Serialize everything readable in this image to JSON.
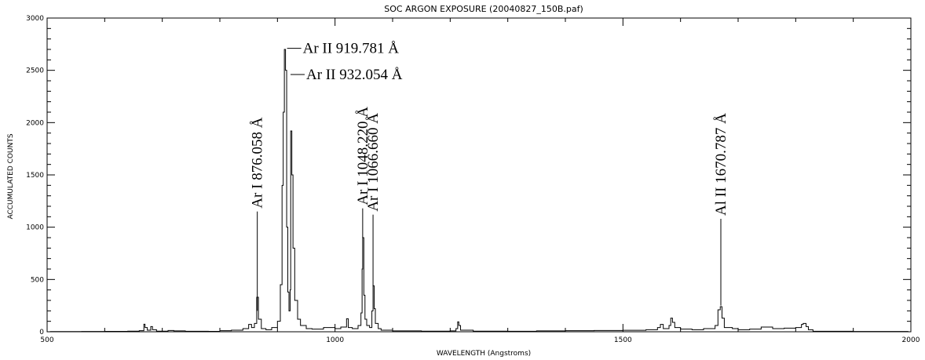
{
  "chart_data": {
    "type": "line",
    "title": "SOC ARGON EXPOSURE (20040827_150B.paf)",
    "xlabel": "WAVELENGTH (Angstroms)",
    "ylabel": "ACCUMULATED COUNTS",
    "xlim": [
      500,
      2000
    ],
    "ylim": [
      0,
      3000
    ],
    "xticks": [
      500,
      1000,
      1500,
      2000
    ],
    "yticks": [
      0,
      500,
      1000,
      1500,
      2000,
      2500,
      3000
    ],
    "grid": false,
    "series": [
      {
        "style": "step",
        "points": [
          [
            505,
            2
          ],
          [
            560,
            3
          ],
          [
            600,
            4
          ],
          [
            640,
            6
          ],
          [
            660,
            10
          ],
          [
            668,
            72
          ],
          [
            670,
            40
          ],
          [
            674,
            15
          ],
          [
            680,
            50
          ],
          [
            683,
            20
          ],
          [
            690,
            6
          ],
          [
            710,
            12
          ],
          [
            720,
            8
          ],
          [
            740,
            5
          ],
          [
            780,
            4
          ],
          [
            800,
            10
          ],
          [
            820,
            15
          ],
          [
            840,
            30
          ],
          [
            850,
            70
          ],
          [
            855,
            40
          ],
          [
            860,
            80
          ],
          [
            864,
            330
          ],
          [
            867,
            120
          ],
          [
            872,
            30
          ],
          [
            880,
            20
          ],
          [
            890,
            40
          ],
          [
            900,
            100
          ],
          [
            905,
            450
          ],
          [
            908,
            1400
          ],
          [
            910,
            2100
          ],
          [
            912,
            2700
          ],
          [
            914,
            2500
          ],
          [
            916,
            1000
          ],
          [
            918,
            380
          ],
          [
            920,
            200
          ],
          [
            922,
            400
          ],
          [
            923,
            1920
          ],
          [
            925,
            1500
          ],
          [
            927,
            800
          ],
          [
            930,
            300
          ],
          [
            935,
            120
          ],
          [
            940,
            60
          ],
          [
            950,
            30
          ],
          [
            960,
            25
          ],
          [
            980,
            40
          ],
          [
            1000,
            30
          ],
          [
            1010,
            45
          ],
          [
            1020,
            125
          ],
          [
            1023,
            40
          ],
          [
            1030,
            30
          ],
          [
            1040,
            60
          ],
          [
            1045,
            180
          ],
          [
            1047,
            600
          ],
          [
            1048,
            900
          ],
          [
            1050,
            350
          ],
          [
            1052,
            120
          ],
          [
            1055,
            60
          ],
          [
            1060,
            40
          ],
          [
            1064,
            200
          ],
          [
            1066,
            440
          ],
          [
            1068,
            220
          ],
          [
            1070,
            80
          ],
          [
            1075,
            30
          ],
          [
            1080,
            15
          ],
          [
            1100,
            8
          ],
          [
            1150,
            6
          ],
          [
            1200,
            8
          ],
          [
            1210,
            30
          ],
          [
            1213,
            95
          ],
          [
            1215,
            60
          ],
          [
            1218,
            15
          ],
          [
            1240,
            6
          ],
          [
            1300,
            5
          ],
          [
            1350,
            8
          ],
          [
            1400,
            10
          ],
          [
            1450,
            12
          ],
          [
            1500,
            14
          ],
          [
            1540,
            20
          ],
          [
            1560,
            40
          ],
          [
            1565,
            70
          ],
          [
            1570,
            30
          ],
          [
            1580,
            60
          ],
          [
            1583,
            130
          ],
          [
            1586,
            90
          ],
          [
            1590,
            40
          ],
          [
            1600,
            25
          ],
          [
            1620,
            20
          ],
          [
            1640,
            30
          ],
          [
            1660,
            60
          ],
          [
            1665,
            210
          ],
          [
            1669,
            240
          ],
          [
            1672,
            130
          ],
          [
            1676,
            40
          ],
          [
            1690,
            30
          ],
          [
            1700,
            20
          ],
          [
            1720,
            25
          ],
          [
            1740,
            45
          ],
          [
            1760,
            30
          ],
          [
            1780,
            35
          ],
          [
            1800,
            40
          ],
          [
            1810,
            70
          ],
          [
            1813,
            80
          ],
          [
            1818,
            50
          ],
          [
            1822,
            20
          ],
          [
            1830,
            5
          ],
          [
            1900,
            3
          ],
          [
            1995,
            2
          ]
        ]
      }
    ],
    "annotations": [
      {
        "text": "Ar I 876.058 Å",
        "x": 865,
        "y_start": 200,
        "y_end": 1150,
        "orientation": "vertical"
      },
      {
        "text": "Ar II 919.781 Å",
        "x": 914,
        "y_start": 2710,
        "y_end": 2710,
        "orientation": "horizontal"
      },
      {
        "text": "Ar II 932.054 Å",
        "x": 920,
        "y_start": 2460,
        "y_end": 2460,
        "orientation": "horizontal"
      },
      {
        "text": "Ar I 1048.220 Å",
        "x": 1048,
        "y_start": 900,
        "y_end": 1180,
        "orientation": "vertical"
      },
      {
        "text": "Ar I 1066.660 Å",
        "x": 1066,
        "y_start": 440,
        "y_end": 1120,
        "orientation": "vertical"
      },
      {
        "text": "Al II 1670.787 Å",
        "x": 1670,
        "y_start": 250,
        "y_end": 1080,
        "orientation": "vertical"
      }
    ]
  }
}
